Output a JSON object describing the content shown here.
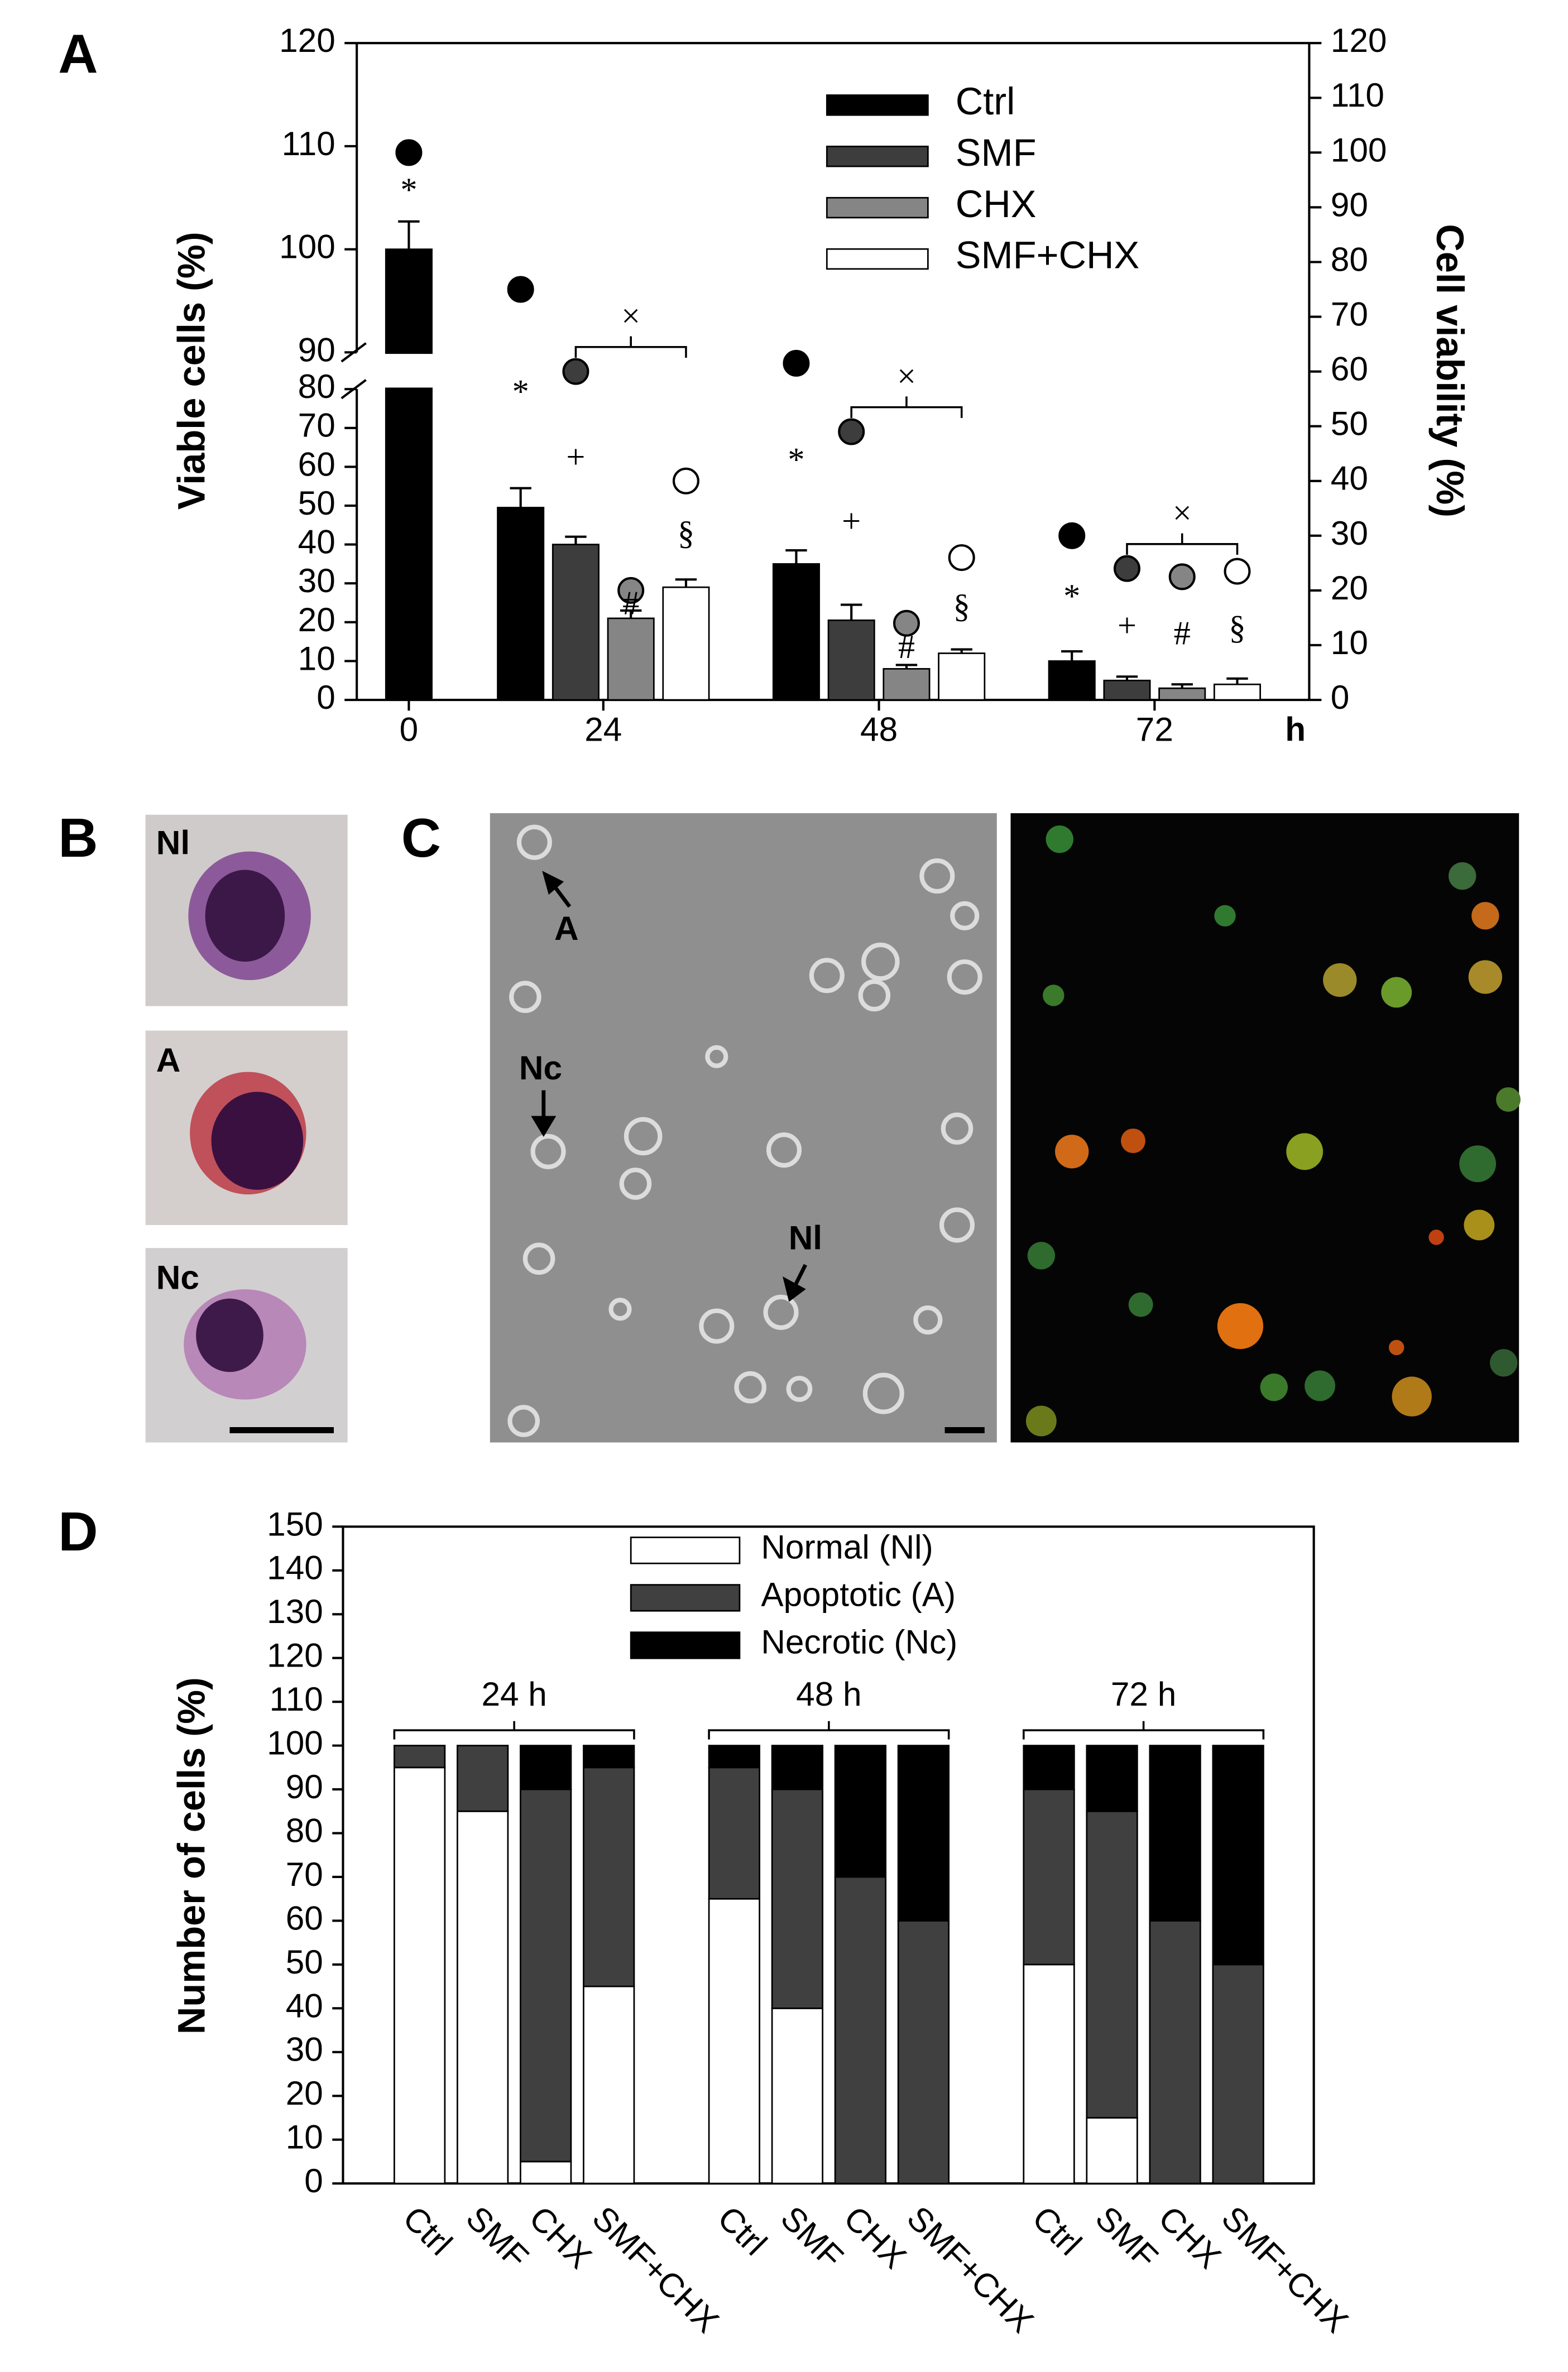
{
  "chart_data": [
    {
      "type": "bar",
      "label": "A",
      "categories": [
        "0",
        "24",
        "48",
        "72"
      ],
      "x_unit": "h",
      "ylabel": "Viable cells (%)",
      "y2label": "Cell viability (%)",
      "ylim": [
        0,
        120
      ],
      "ybreak": [
        80,
        90
      ],
      "yticks": [
        0,
        10,
        20,
        30,
        40,
        50,
        60,
        70,
        80,
        90,
        100,
        110,
        120
      ],
      "y2lim": [
        0,
        120
      ],
      "y2ticks": [
        0,
        10,
        20,
        30,
        40,
        50,
        60,
        70,
        80,
        90,
        100,
        110,
        120
      ],
      "legend": "top-right",
      "bracket_symbol": "×",
      "series": [
        {
          "name": "Ctrl",
          "color": "#000000",
          "symbol": "*",
          "values": [
            100,
            49.5,
            35,
            10
          ],
          "errors": [
            2.7,
            5,
            3.5,
            2.5
          ],
          "y2_values": [
            100,
            75,
            61.5,
            30
          ],
          "axis": "y",
          "y2_axis": "y2"
        },
        {
          "name": "SMF",
          "color": "#3d3d3d",
          "symbol": "+",
          "values": [
            null,
            40,
            20.5,
            5
          ],
          "errors": [
            null,
            2,
            4,
            1
          ],
          "y2_values": [
            null,
            60,
            49,
            24
          ],
          "axis": "y",
          "y2_axis": "y2"
        },
        {
          "name": "CHX",
          "color": "#858585",
          "symbol": "#",
          "values": [
            null,
            21,
            8,
            3
          ],
          "errors": [
            null,
            2,
            1,
            1
          ],
          "y2_values": [
            null,
            20,
            14,
            22.5
          ],
          "axis": "y",
          "y2_axis": "y2"
        },
        {
          "name": "SMF+CHX",
          "color": "#ffffff",
          "symbol": "§",
          "values": [
            null,
            29,
            12,
            4
          ],
          "errors": [
            null,
            2,
            1,
            1.5
          ],
          "y2_values": [
            null,
            40,
            26,
            23.5
          ],
          "axis": "y",
          "y2_axis": "y2"
        }
      ]
    },
    {
      "type": "stacked_bar",
      "label": "D",
      "categories": [
        "Ctrl",
        "SMF",
        "CHX",
        "SMF+CHX",
        "Ctrl",
        "SMF",
        "CHX",
        "SMF+CHX",
        "Ctrl",
        "SMF",
        "CHX",
        "SMF+CHX"
      ],
      "groups": [
        "24 h",
        "48 h",
        "72 h"
      ],
      "ylabel": "Number of cells (%)",
      "ylim": [
        0,
        150
      ],
      "yticks": [
        0,
        10,
        20,
        30,
        40,
        50,
        60,
        70,
        80,
        90,
        100,
        110,
        120,
        130,
        140,
        150
      ],
      "legend": "top-center",
      "series": [
        {
          "name": "Normal (Nl)",
          "color": "#ffffff",
          "values": [
            95,
            85,
            5,
            45,
            65,
            40,
            0,
            0,
            50,
            15,
            0,
            0
          ]
        },
        {
          "name": "Apoptotic (A)",
          "color": "#404040",
          "values": [
            5,
            15,
            85,
            50,
            30,
            50,
            70,
            60,
            40,
            70,
            60,
            50
          ]
        },
        {
          "name": "Necrotic (Nc)",
          "color": "#000000",
          "values": [
            0,
            0,
            10,
            5,
            5,
            10,
            30,
            40,
            10,
            15,
            40,
            50
          ]
        }
      ]
    }
  ],
  "panel_b": {
    "label": "B",
    "cells": [
      "Nl",
      "A",
      "Nc"
    ]
  },
  "panel_c": {
    "label": "C",
    "arrows": [
      "A",
      "Nc",
      "Nl"
    ]
  }
}
